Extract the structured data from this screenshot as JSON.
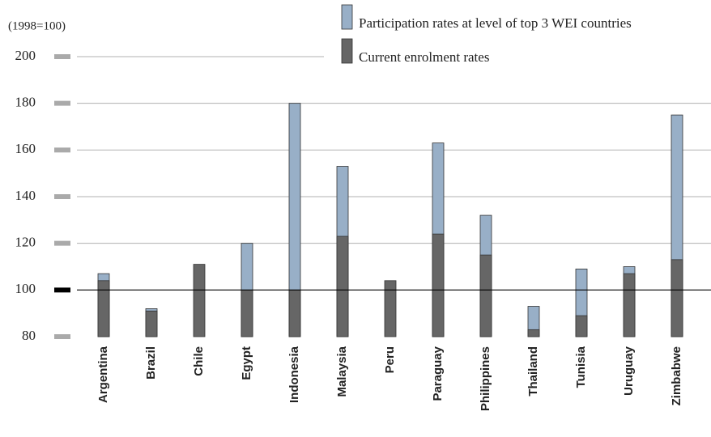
{
  "chart_data": {
    "type": "bar",
    "y_label": "(1998=100)",
    "categories": [
      "Argentina",
      "Brazil",
      "Chile",
      "Egypt",
      "Indonesia",
      "Malaysia",
      "Peru",
      "Paraguay",
      "Philippines",
      "Thailand",
      "Tunisia",
      "Uruguay",
      "Zimbabwe"
    ],
    "series": [
      {
        "name": "Participation rates at level of top 3 WEI countries",
        "color": "#98afc7",
        "values": [
          107,
          92,
          null,
          120,
          180,
          153,
          null,
          163,
          132,
          93,
          109,
          110,
          175
        ]
      },
      {
        "name": "Current enrolment rates",
        "color": "#666666",
        "values": [
          104,
          91,
          111,
          100,
          100,
          123,
          104,
          124,
          115,
          83,
          89,
          107,
          113
        ]
      }
    ],
    "ylim": [
      80,
      200
    ],
    "yticks": [
      80,
      100,
      120,
      140,
      160,
      180,
      200
    ],
    "grid": true,
    "reference_line": 100
  }
}
